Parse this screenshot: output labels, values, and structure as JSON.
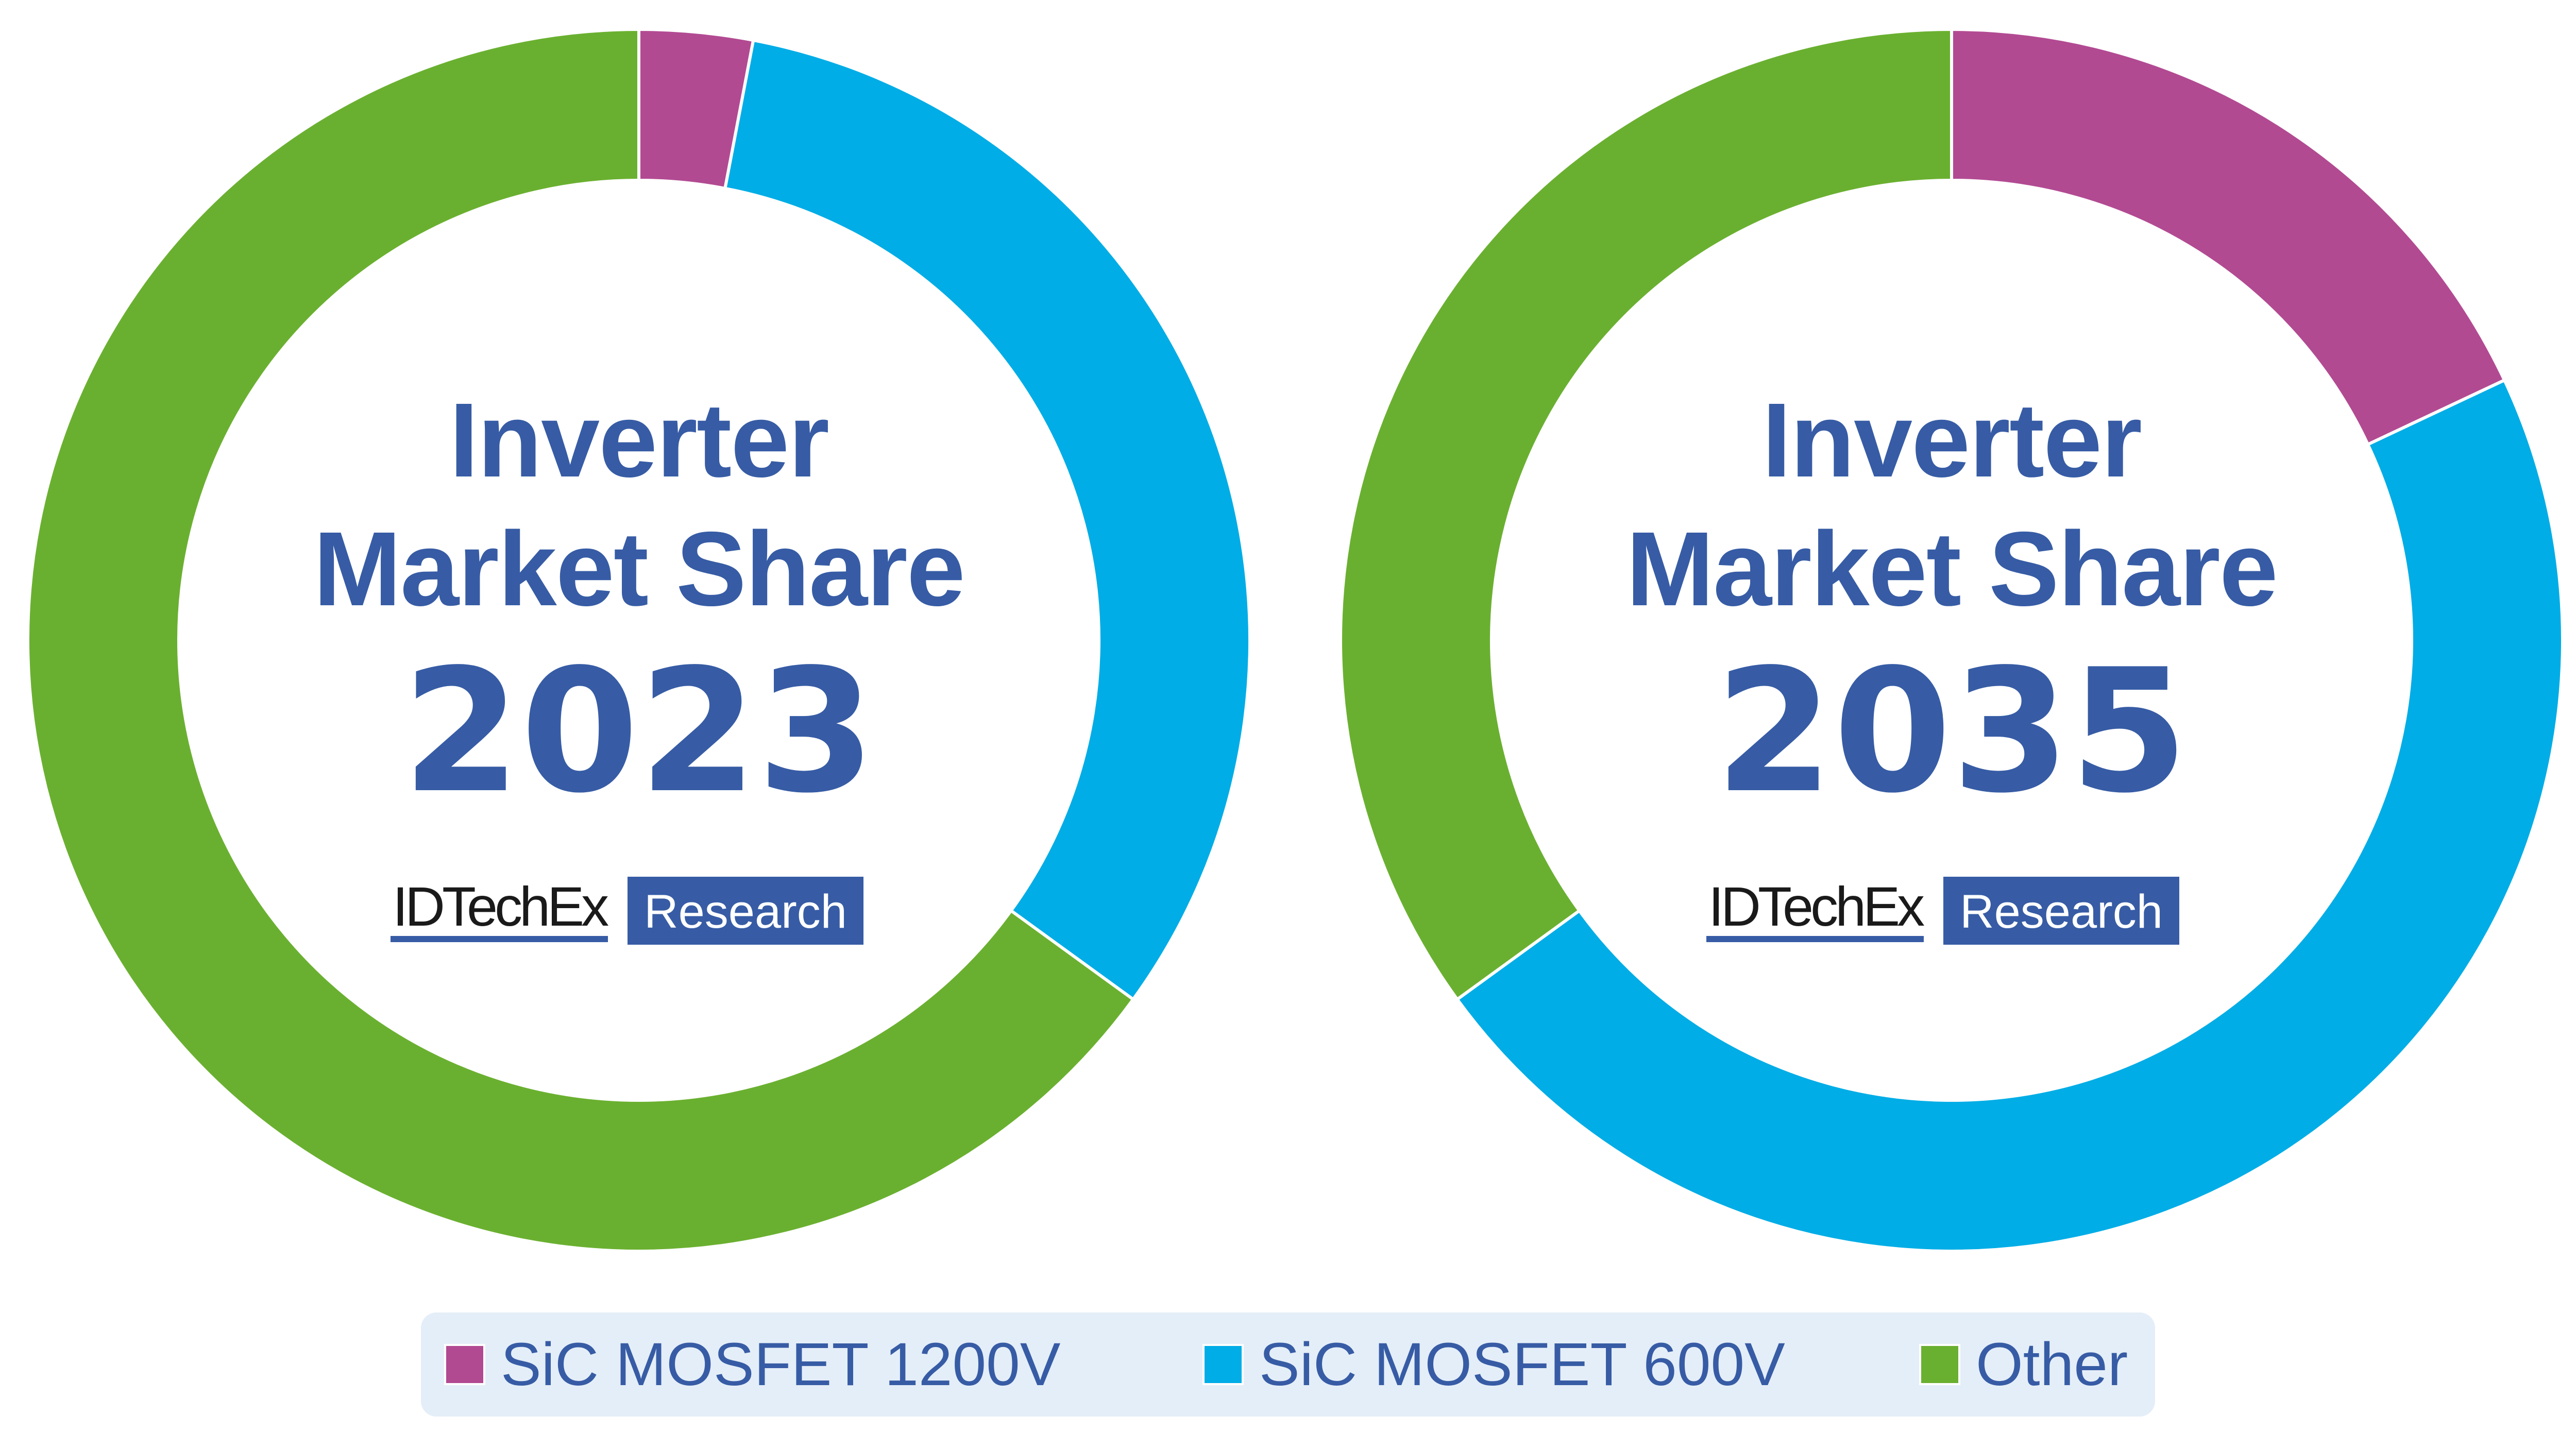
{
  "chart_data": [
    {
      "type": "pie",
      "variant": "donut",
      "title_lines": [
        "Inverter",
        "Market Share"
      ],
      "year": "2023",
      "categories": [
        "SiC MOSFET 1200V",
        "SiC MOSFET 600V",
        "Other"
      ],
      "values": [
        3,
        32,
        65
      ],
      "unit": "%"
    },
    {
      "type": "pie",
      "variant": "donut",
      "title_lines": [
        "Inverter",
        "Market Share"
      ],
      "year": "2035",
      "categories": [
        "SiC MOSFET 1200V",
        "SiC MOSFET 600V",
        "Other"
      ],
      "values": [
        18,
        47,
        35
      ],
      "unit": "%"
    }
  ],
  "colors": {
    "SiC MOSFET 1200V": "#b24a92",
    "SiC MOSFET 600V": "#00ade6",
    "Other": "#6ab030",
    "text": "#375ca5",
    "legend_bg": "#e4eef8"
  },
  "logo": {
    "brand": "IDTechEx",
    "tag": "Research"
  },
  "legend": {
    "placement": "bottom",
    "items": [
      "SiC MOSFET 1200V",
      "SiC MOSFET 600V",
      "Other"
    ]
  }
}
